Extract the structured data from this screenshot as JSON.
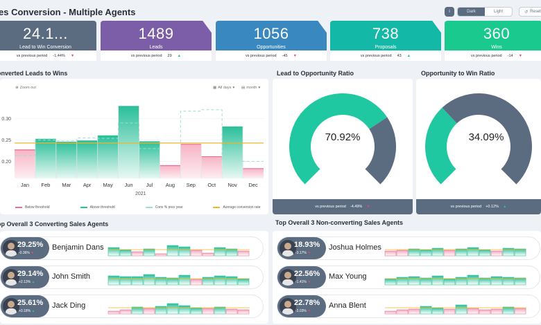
{
  "header": {
    "title": "es Conversion - Multiple Agents",
    "info_label": "i",
    "theme_dark": "Dark",
    "theme_light": "Light",
    "reset_label": "Reset"
  },
  "kpis": [
    {
      "value": "24.1...",
      "label": "Lead to Win Conversion",
      "cmp_label": "vs previous period",
      "cmp_value": "-1.44%",
      "trend": "down",
      "color": "#5b6b80"
    },
    {
      "value": "1489",
      "label": "Leads",
      "cmp_label": "vs previous period",
      "cmp_value": "29",
      "trend": "up",
      "color": "#7b5ea7"
    },
    {
      "value": "1056",
      "label": "Opportunities",
      "cmp_label": "vs previous period",
      "cmp_value": "-45",
      "trend": "down",
      "color": "#3a88c0"
    },
    {
      "value": "738",
      "label": "Proposals",
      "cmp_label": "vs previous period",
      "cmp_value": "43",
      "trend": "up",
      "color": "#14b8a6"
    },
    {
      "value": "360",
      "label": "Wins",
      "cmp_label": "vs previous period",
      "cmp_value": "-14",
      "trend": "down",
      "color": "#19c98d"
    }
  ],
  "trend_section": {
    "title": "onverted Leads to Wins",
    "zoom_out": "Zoom out",
    "all_days": "All days",
    "month": "month",
    "year_label": "2021",
    "legend": [
      "Below threshold",
      "Above threshold",
      "Conv % prev year",
      "Average conversion rate"
    ]
  },
  "chart_data": {
    "type": "bar",
    "categories": [
      "Jan",
      "Feb",
      "Mar",
      "Apr",
      "May",
      "Jun",
      "Jul",
      "Aug",
      "Sep",
      "Oct",
      "Nov",
      "Dec"
    ],
    "series": [
      {
        "name": "",
        "values": [
          0.227,
          0.252,
          0.245,
          0.248,
          0.26,
          0.329,
          0.246,
          0.19,
          0.24,
          0.211,
          0.281,
          0.183
        ]
      },
      {
        "name": "Conv % prev year",
        "values": [
          0.214,
          0.25,
          0.248,
          0.255,
          0.254,
          0.29,
          0.23,
          0.243,
          0.318,
          0.321,
          0.205,
          0.2
        ]
      }
    ],
    "average": 0.243,
    "yticks": [
      0.2,
      0.25,
      0.3
    ],
    "ylim": [
      0.16,
      0.345
    ],
    "colors": {
      "below": "#e8708f",
      "above": "#2bbf9a",
      "avg": "#f0b429"
    }
  },
  "ratios": [
    {
      "title": "Lead to Opportunity Ratio",
      "value": "70.92%",
      "ratio": 0.7092,
      "cmp_label": "vs previous period",
      "cmp_value": "-4.49%",
      "trend": "down",
      "color": "#1fc8a0"
    },
    {
      "title": "Opportunity to Win Ratio",
      "value": "34.09%",
      "ratio": 0.3409,
      "cmp_label": "vs previous period",
      "cmp_value": "+0.12%",
      "trend": "up",
      "color": "#1fc8a0"
    }
  ],
  "top_agents": {
    "title": "op Overall 3 Converting Sales Agents",
    "rows": [
      {
        "pct": "29.25%",
        "delta": "-0.36%",
        "trend": "down",
        "name": "Benjamin Dans",
        "bars": [
          0.55,
          0.4,
          0.25,
          0.45,
          0.15,
          0.7,
          0.6,
          0.35,
          0.2,
          0.55,
          0.45,
          0.3
        ]
      },
      {
        "pct": "29.14%",
        "delta": "+2.13%",
        "trend": "up",
        "name": "John Smith",
        "bars": [
          0.6,
          0.55,
          0.55,
          0.7,
          0.5,
          0.45,
          0.65,
          0.35,
          0.5,
          0.6,
          0.55,
          0.4
        ]
      },
      {
        "pct": "25.61%",
        "delta": "+0.18%",
        "trend": "up",
        "name": "Jack Ding",
        "bars": [
          0.2,
          0.25,
          0.45,
          0.35,
          0.5,
          0.7,
          0.55,
          0.4,
          0.35,
          0.45,
          0.3,
          0.25
        ]
      }
    ]
  },
  "bottom_agents": {
    "title": "Top Overall 3 Non-converting Sales Agents",
    "rows": [
      {
        "pct": "18.93%",
        "delta": "-3.17%",
        "trend": "down",
        "name": "Joshua Holmes",
        "bars": [
          0.3,
          0.35,
          0.45,
          0.4,
          0.5,
          0.35,
          0.45,
          0.55,
          0.4,
          0.3,
          0.5,
          0.45
        ]
      },
      {
        "pct": "22.56%",
        "delta": "-1.41%",
        "trend": "down",
        "name": "Max Young",
        "bars": [
          0.4,
          0.5,
          0.55,
          0.45,
          0.6,
          0.4,
          0.5,
          0.65,
          0.45,
          0.55,
          0.5,
          0.45
        ]
      },
      {
        "pct": "22.78%",
        "delta": "-3.03%",
        "trend": "down",
        "name": "Anna Blent",
        "bars": [
          0.2,
          0.25,
          0.3,
          0.5,
          0.4,
          0.3,
          0.6,
          0.35,
          0.25,
          0.3,
          0.45,
          0.35
        ]
      }
    ]
  }
}
